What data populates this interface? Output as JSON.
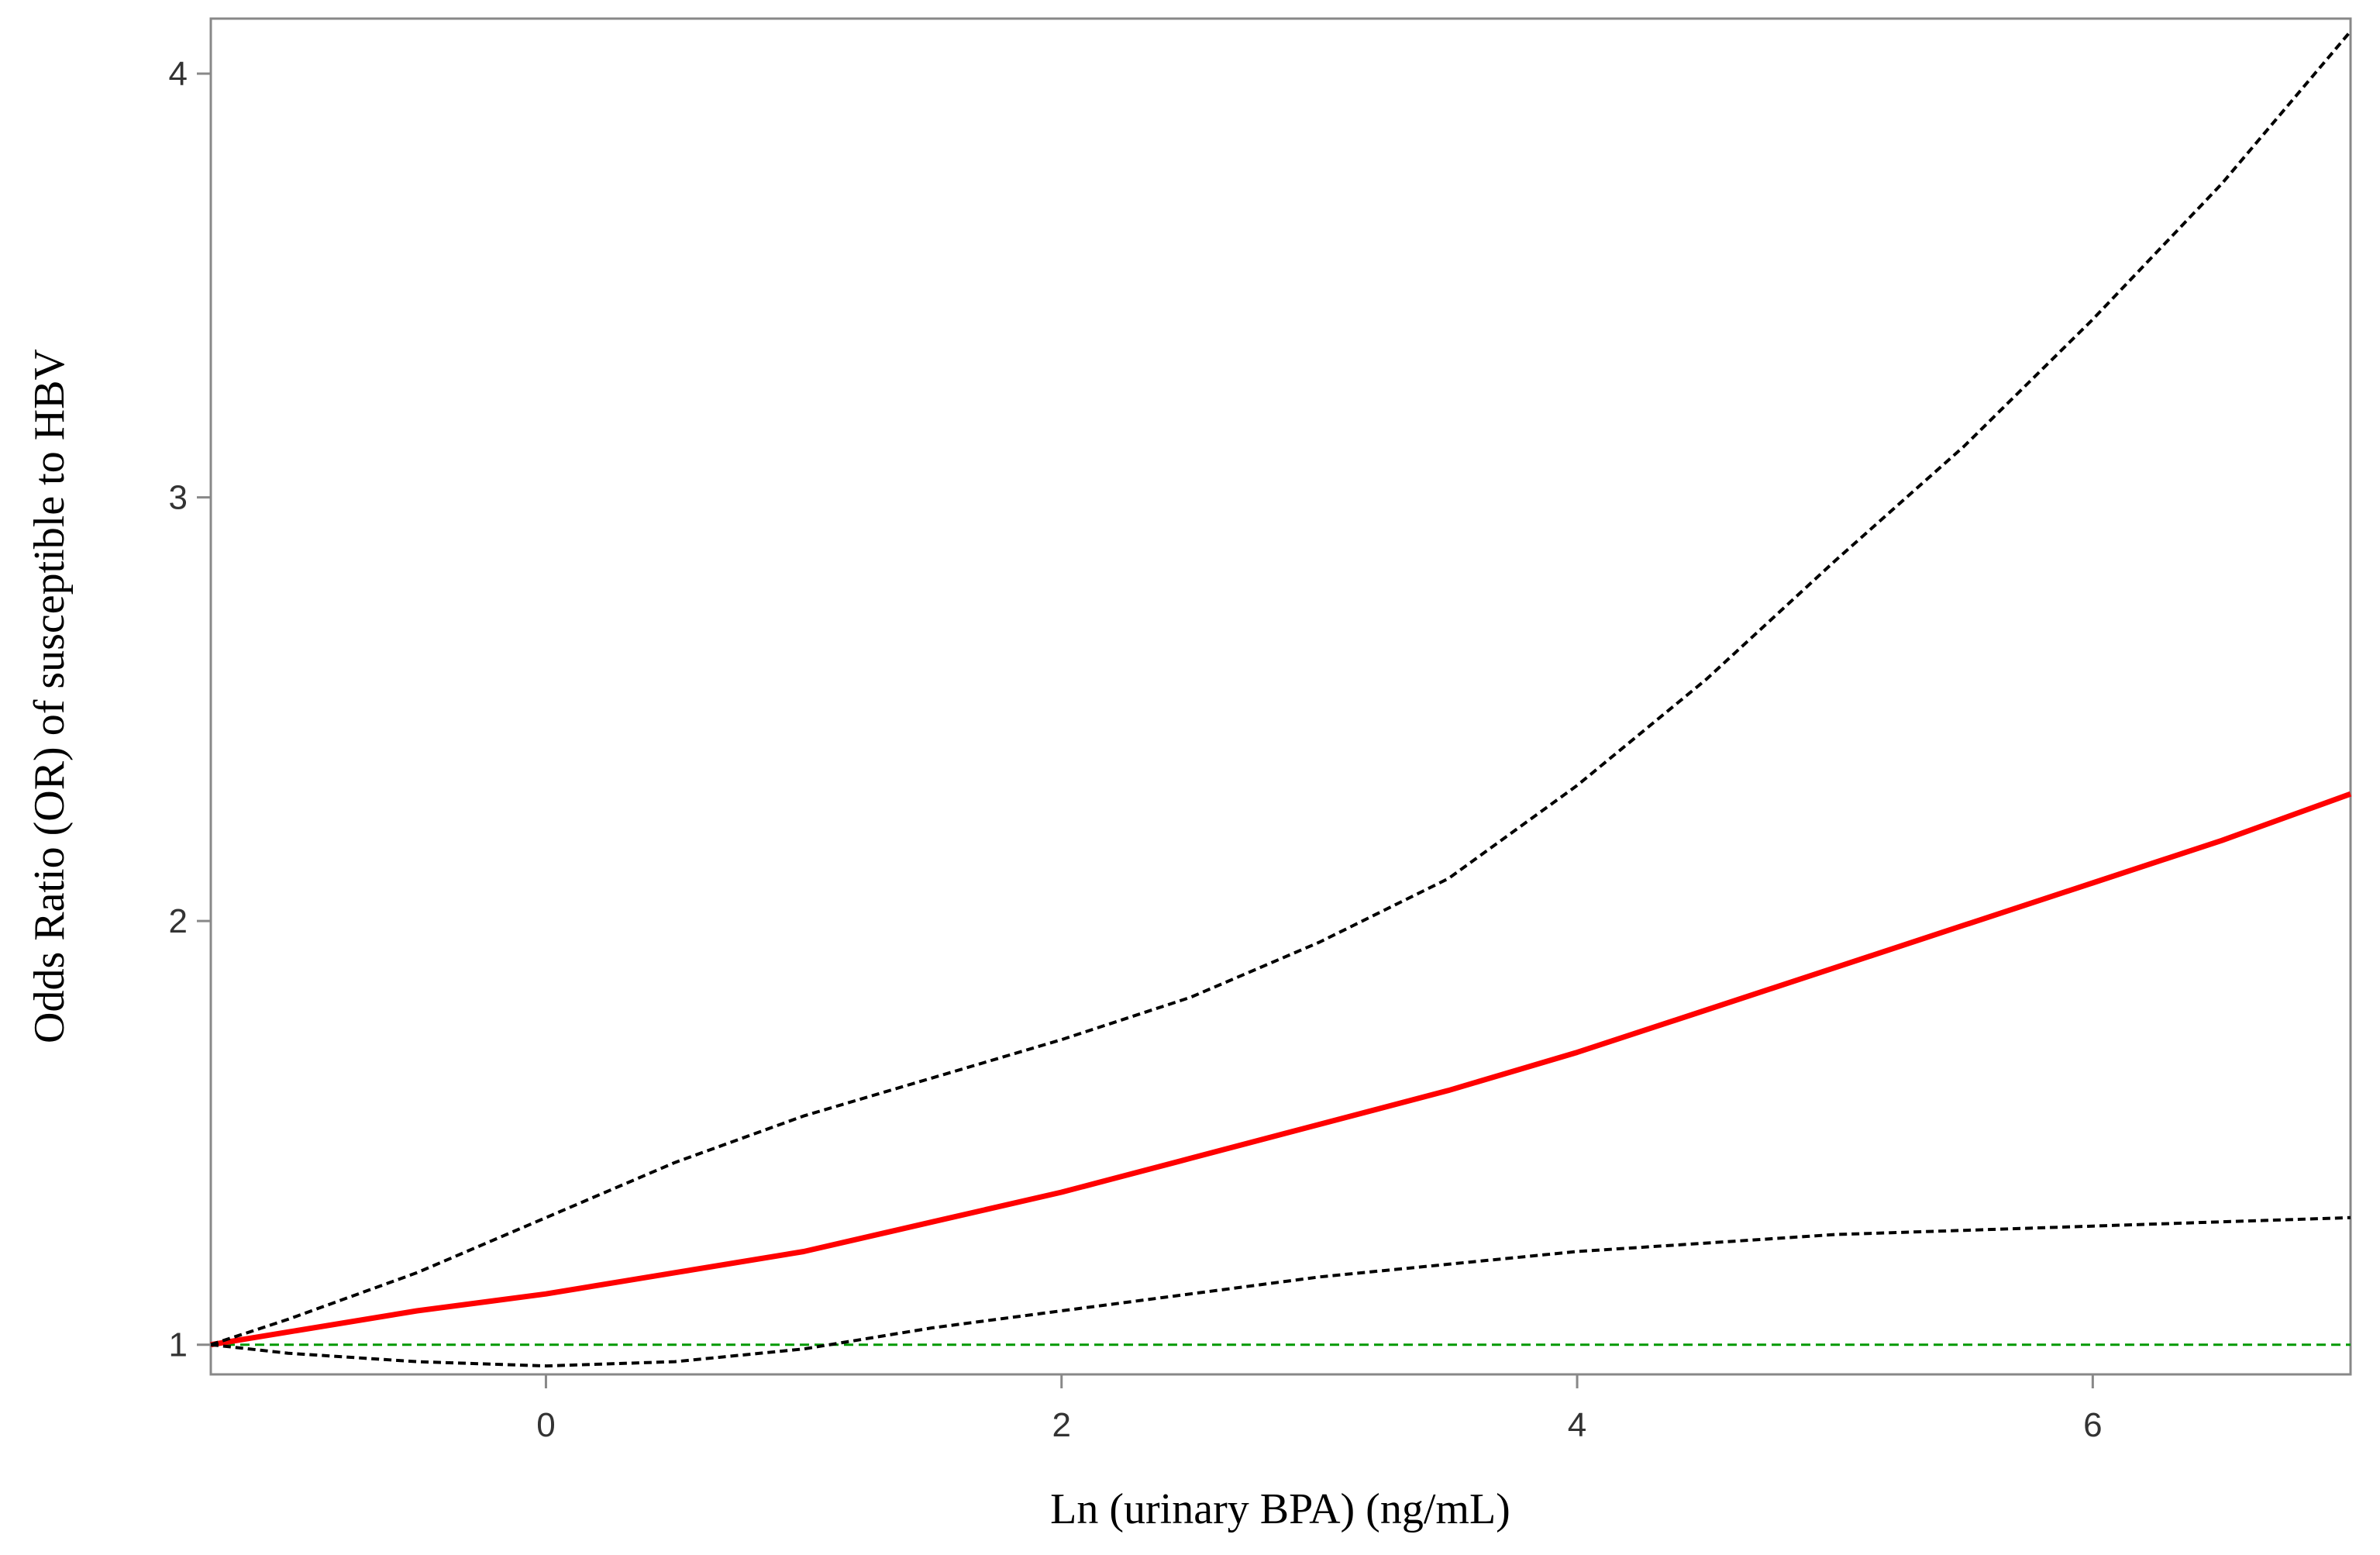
{
  "chart_data": {
    "type": "line",
    "title": "",
    "xlabel": "Ln (urinary BPA) (ng/mL)",
    "ylabel": "Odds Ratio (OR) of susceptible to HBV",
    "xlim": [
      -1.3,
      7.0
    ],
    "ylim": [
      0.93,
      4.13
    ],
    "xticks": [
      0,
      2,
      4,
      6
    ],
    "yticks": [
      1,
      2,
      3,
      4
    ],
    "grid": false,
    "legend": "none",
    "reference_line": {
      "y": 1,
      "color": "#009900",
      "style": "dashed"
    },
    "series": [
      {
        "role": "estimate",
        "color": "#ff0000",
        "style": "solid",
        "x": [
          -1.3,
          -1.0,
          -0.5,
          0.0,
          0.5,
          1.0,
          1.5,
          2.0,
          2.5,
          3.0,
          3.5,
          4.0,
          4.5,
          5.0,
          5.5,
          6.0,
          6.5,
          7.0
        ],
        "y": [
          1.0,
          1.03,
          1.08,
          1.12,
          1.17,
          1.22,
          1.29,
          1.36,
          1.44,
          1.52,
          1.6,
          1.69,
          1.79,
          1.89,
          1.99,
          2.09,
          2.19,
          2.3
        ]
      },
      {
        "role": "upper",
        "color": "#000000",
        "style": "dashed",
        "x": [
          -1.3,
          -1.0,
          -0.5,
          0.0,
          0.5,
          1.0,
          1.5,
          2.0,
          2.5,
          3.0,
          3.5,
          4.0,
          4.5,
          5.0,
          5.5,
          6.0,
          6.5,
          7.0
        ],
        "y": [
          1.0,
          1.06,
          1.17,
          1.3,
          1.43,
          1.54,
          1.63,
          1.72,
          1.82,
          1.95,
          2.1,
          2.32,
          2.57,
          2.85,
          3.12,
          3.42,
          3.74,
          4.1
        ]
      },
      {
        "role": "lower",
        "color": "#000000",
        "style": "dashed",
        "x": [
          -1.3,
          -1.0,
          -0.5,
          0.0,
          0.5,
          1.0,
          1.5,
          2.0,
          2.5,
          3.0,
          3.5,
          4.0,
          4.5,
          5.0,
          5.5,
          6.0,
          6.5,
          7.0
        ],
        "y": [
          1.0,
          0.98,
          0.96,
          0.95,
          0.96,
          0.99,
          1.04,
          1.08,
          1.12,
          1.16,
          1.19,
          1.22,
          1.24,
          1.26,
          1.27,
          1.28,
          1.29,
          1.3
        ]
      }
    ]
  }
}
